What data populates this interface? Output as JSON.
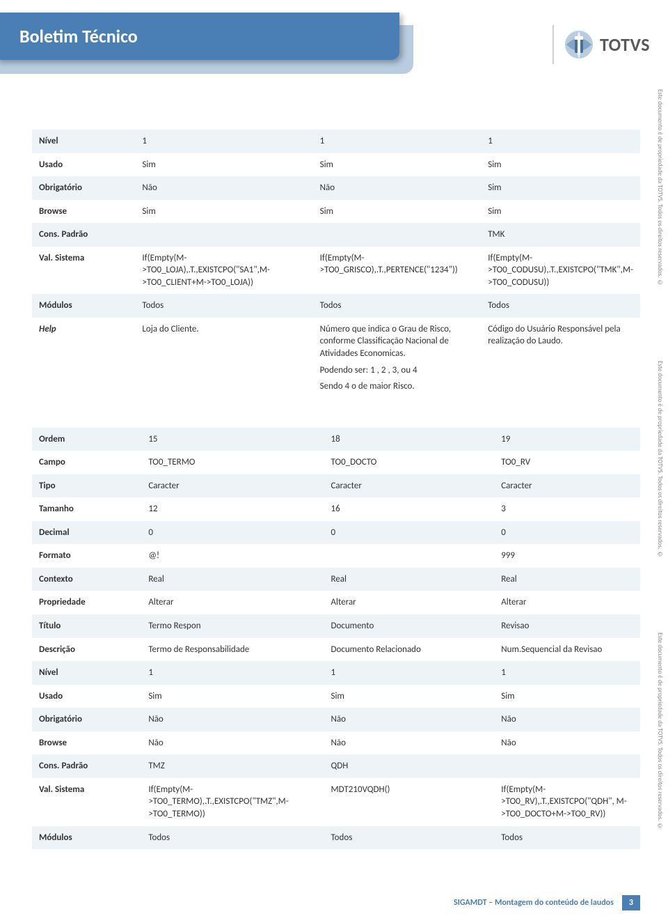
{
  "header": {
    "title": "Boletim Técnico",
    "brand": "TOTVS"
  },
  "sideText": "Este documento é de propriedade da TOTVS. Todos os direitos reservados. ©",
  "footer": {
    "text": "SIGAMDT – Montagem do conteúdo de laudos",
    "page": "3"
  },
  "table1": {
    "rows": [
      {
        "label": "Nível",
        "c1": "1",
        "c2": "1",
        "c3": "1"
      },
      {
        "label": "Usado",
        "c1": "Sim",
        "c2": "Sim",
        "c3": "Sim"
      },
      {
        "label": "Obrigatório",
        "c1": "Não",
        "c2": "Não",
        "c3": "Sim"
      },
      {
        "label": "Browse",
        "c1": "Sim",
        "c2": "Sim",
        "c3": "Sim"
      },
      {
        "label": "Cons. Padrão",
        "c1": "",
        "c2": "",
        "c3": "TMK"
      },
      {
        "label": "Val. Sistema",
        "c1": "If(Empty(M->TO0_LOJA),.T.,EXISTCPO(\"SA1\",M->TO0_CLIENT+M->TO0_LOJA))",
        "c2": "If(Empty(M->TO0_GRISCO),.T.,PERTENCE(\"1234\"))",
        "c3": "If(Empty(M->TO0_CODUSU),.T.,EXISTCPO(\"TMK\",M->TO0_CODUSU))"
      },
      {
        "label": "Módulos",
        "c1": "Todos",
        "c2": "Todos",
        "c3": "Todos"
      }
    ],
    "help": {
      "label": "Help",
      "c1": "Loja do Cliente.",
      "c2a": "Número que indica o Grau de Risco, conforme Classificação Nacional de Atividades Economicas.",
      "c2b": "Podendo ser: 1 , 2 , 3, ou 4",
      "c2c": "Sendo 4 o de maior Risco.",
      "c3": "Código do Usuário Responsável pela realização do Laudo."
    }
  },
  "table2": {
    "rows": [
      {
        "label": "Ordem",
        "c1": "15",
        "c2": "18",
        "c3": "19"
      },
      {
        "label": "Campo",
        "c1": "TO0_TERMO",
        "c2": "TO0_DOCTO",
        "c3": "TO0_RV"
      },
      {
        "label": "Tipo",
        "c1": "Caracter",
        "c2": "Caracter",
        "c3": "Caracter"
      },
      {
        "label": "Tamanho",
        "c1": "12",
        "c2": "16",
        "c3": "3"
      },
      {
        "label": "Decimal",
        "c1": "0",
        "c2": "0",
        "c3": "0"
      },
      {
        "label": "Formato",
        "c1": "@!",
        "c2": "",
        "c3": "999"
      },
      {
        "label": "Contexto",
        "c1": "Real",
        "c2": "Real",
        "c3": "Real"
      },
      {
        "label": "Propriedade",
        "c1": "Alterar",
        "c2": "Alterar",
        "c3": "Alterar"
      },
      {
        "label": "Título",
        "c1": "Termo Respon",
        "c2": "Documento",
        "c3": "Revisao"
      },
      {
        "label": "Descrição",
        "c1": "Termo de Responsabilidade",
        "c2": "Documento Relacionado",
        "c3": "Num.Sequencial da Revisao"
      },
      {
        "label": "Nível",
        "c1": "1",
        "c2": "1",
        "c3": "1"
      },
      {
        "label": "Usado",
        "c1": "Sim",
        "c2": "Sim",
        "c3": "Sim"
      },
      {
        "label": "Obrigatório",
        "c1": "Não",
        "c2": "Não",
        "c3": "Não"
      },
      {
        "label": "Browse",
        "c1": "Não",
        "c2": "Não",
        "c3": "Não"
      },
      {
        "label": "Cons. Padrão",
        "c1": "TMZ",
        "c2": "QDH",
        "c3": ""
      },
      {
        "label": "Val. Sistema",
        "c1": "If(Empty(M->TO0_TERMO),.T.,EXISTCPO(\"TMZ\",M->TO0_TERMO))",
        "c2": "MDT210VQDH()",
        "c3": "If(Empty(M->TO0_RV),.T.,EXISTCPO(\"QDH\", M->TO0_DOCTO+M->TO0_RV))"
      },
      {
        "label": "Módulos",
        "c1": "Todos",
        "c2": "Todos",
        "c3": "Todos"
      }
    ]
  }
}
